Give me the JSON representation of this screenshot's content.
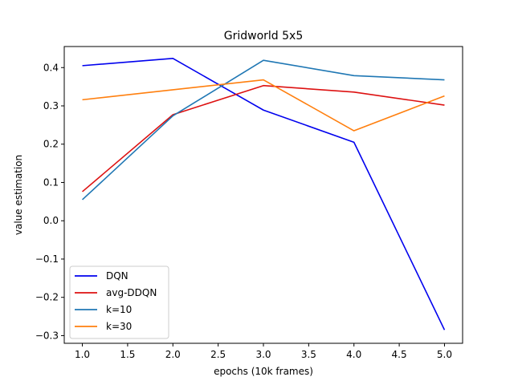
{
  "chart_data": {
    "type": "line",
    "title": "Gridworld 5x5",
    "xlabel": "epochs (10k frames)",
    "ylabel": "value estimation",
    "xlim": [
      0.8,
      5.2
    ],
    "ylim": [
      -0.32,
      0.455
    ],
    "xticks": [
      "1.0",
      "1.5",
      "2.0",
      "2.5",
      "3.0",
      "3.5",
      "4.0",
      "4.5",
      "5.0"
    ],
    "yticks": [
      "−0.3",
      "−0.2",
      "−0.1",
      "0.0",
      "0.1",
      "0.2",
      "0.3",
      "0.4"
    ],
    "grid": false,
    "legend_position": "lower-left",
    "x": [
      1,
      2,
      3,
      4,
      5
    ],
    "series": [
      {
        "name": "DQN",
        "color": "#0000ee",
        "values": [
          0.405,
          0.424,
          0.289,
          0.205,
          -0.285
        ]
      },
      {
        "name": "avg-DDQN",
        "color": "#dd1111",
        "values": [
          0.076,
          0.277,
          0.353,
          0.336,
          0.302
        ]
      },
      {
        "name": "k=10",
        "color": "#1f77b4",
        "values": [
          0.055,
          0.274,
          0.419,
          0.379,
          0.368
        ]
      },
      {
        "name": "k=30",
        "color": "#ff7f0e",
        "values": [
          0.316,
          0.342,
          0.368,
          0.235,
          0.326
        ]
      }
    ]
  }
}
